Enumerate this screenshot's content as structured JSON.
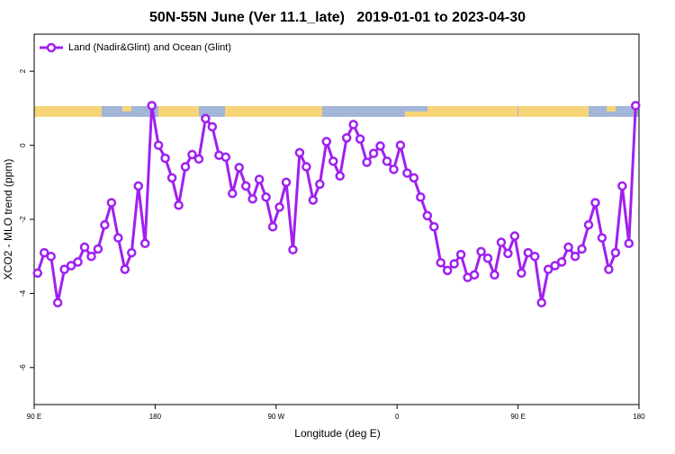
{
  "chart_data": {
    "type": "line",
    "title": "50N-55N June (Ver 11.1_late)   2019-01-01 to 2023-04-30",
    "x_label": "Longitude (deg E)",
    "y_label": "XCO2 - MLO trend (ppm)",
    "x": [
      92.5,
      97.5,
      102.5,
      107.5,
      112.5,
      117.5,
      122.5,
      127.5,
      132.5,
      137.5,
      142.5,
      147.5,
      152.5,
      157.5,
      162.5,
      167.5,
      172.5,
      177.5,
      182.5,
      187.5,
      192.5,
      197.5,
      202.5,
      207.5,
      212.5,
      217.5,
      222.5,
      227.5,
      232.5,
      237.5,
      242.5,
      247.5,
      252.5,
      257.5,
      262.5,
      267.5,
      272.5,
      277.5,
      282.5,
      287.5,
      292.5,
      297.5,
      302.5,
      307.5,
      312.5,
      317.5,
      322.5,
      327.5,
      332.5,
      337.5,
      342.5,
      347.5,
      352.5,
      357.5,
      362.5,
      367.5,
      372.5,
      377.5,
      382.5,
      387.5,
      392.5,
      397.5,
      402.5,
      407.5,
      412.5,
      417.5,
      422.5,
      427.5,
      432.5,
      437.5,
      442.5,
      447.5,
      452.5,
      457.5,
      462.5,
      467.5,
      472.5,
      477.5,
      482.5,
      487.5,
      492.5,
      497.5,
      502.5,
      507.5,
      512.5,
      517.5,
      522.5,
      527.5,
      532.5,
      537.5
    ],
    "series": [
      {
        "name": "Land (Nadir&Glint) and Ocean (Glint)",
        "color": "#a020f0",
        "values": [
          -3.45,
          -2.9,
          -3.0,
          -4.25,
          -3.35,
          -3.25,
          -3.15,
          -2.75,
          -3.0,
          -2.8,
          -2.15,
          -1.55,
          -2.5,
          -3.35,
          -2.9,
          -1.1,
          -2.65,
          1.07,
          0.0,
          -0.35,
          -0.88,
          -1.62,
          -0.58,
          -0.25,
          -0.37,
          0.72,
          0.5,
          -0.27,
          -0.32,
          -1.3,
          -0.6,
          -1.1,
          -1.45,
          -0.92,
          -1.4,
          -2.2,
          -1.67,
          -1.0,
          -2.82,
          -0.2,
          -0.58,
          -1.48,
          -1.05,
          0.1,
          -0.43,
          -0.83,
          0.2,
          0.56,
          0.17,
          -0.46,
          -0.22,
          -0.02,
          -0.43,
          -0.65,
          0.0,
          -0.75,
          -0.88,
          -1.4,
          -1.9,
          -2.2,
          -3.17,
          -3.38,
          -3.2,
          -2.95,
          -3.57,
          -3.5,
          -2.87,
          -3.05,
          -3.5,
          -2.62,
          -2.92,
          -2.45,
          -3.45,
          -2.9,
          -3.0,
          -4.25,
          -3.35,
          -3.25,
          -3.15,
          -2.75,
          -3.0,
          -2.8,
          -2.15,
          -1.55,
          -2.5,
          -3.35,
          -2.9,
          -1.1,
          -2.65,
          1.07
        ]
      }
    ],
    "xlim": [
      90,
      540
    ],
    "xticks": [
      {
        "value": 90,
        "label": "90 E"
      },
      180,
      {
        "value": 270,
        "label": "90 W"
      },
      {
        "value": 360,
        "label": "0"
      },
      {
        "value": 450,
        "label": "90 E"
      },
      {
        "value": 540,
        "label": "180"
      }
    ],
    "ylim": [
      -7,
      3
    ],
    "yticks": [
      2,
      0,
      -2,
      -4,
      -6
    ],
    "legend": "top-left"
  }
}
